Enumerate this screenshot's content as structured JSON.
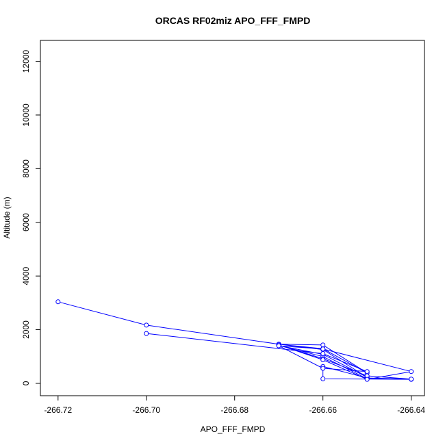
{
  "chart_data": {
    "type": "line",
    "title": "ORCAS RF02miz APO_FFF_FMPD",
    "xlabel": "APO_FFF_FMPD",
    "ylabel": "Altitude (m)",
    "xlim": [
      -266.724,
      -266.637
    ],
    "ylim": [
      -460,
      12780
    ],
    "xticks": [
      -266.72,
      -266.7,
      -266.68,
      -266.66,
      -266.64
    ],
    "xtick_labels": [
      "-266.72",
      "-266.70",
      "-266.68",
      "-266.66",
      "-266.64"
    ],
    "yticks": [
      0,
      2000,
      4000,
      6000,
      8000,
      10000,
      12000
    ],
    "ytick_labels": [
      "0",
      "2000",
      "4000",
      "6000",
      "8000",
      "10000",
      "12000"
    ],
    "grid": false,
    "marker": "open-circle",
    "series": [
      {
        "color": "#0000ff",
        "points": [
          [
            -266.72,
            3040
          ],
          [
            -266.7,
            2170
          ],
          [
            -266.67,
            1460
          ],
          [
            -266.66,
            1290
          ],
          [
            -266.65,
            390
          ],
          [
            -266.66,
            1430
          ],
          [
            -266.67,
            1460
          ],
          [
            -266.66,
            1260
          ],
          [
            -266.65,
            230
          ],
          [
            -266.66,
            1080
          ],
          [
            -266.67,
            1410
          ],
          [
            -266.66,
            1000
          ],
          [
            -266.65,
            170
          ],
          [
            -266.64,
            150
          ],
          [
            -266.66,
            170
          ],
          [
            -266.66,
            630
          ],
          [
            -266.65,
            200
          ],
          [
            -266.64,
            160
          ],
          [
            -266.65,
            280
          ],
          [
            -266.66,
            920
          ],
          [
            -266.67,
            1430
          ],
          [
            -266.66,
            880
          ],
          [
            -266.65,
            150
          ],
          [
            -266.64,
            440
          ],
          [
            -266.66,
            1280
          ],
          [
            -266.67,
            1400
          ],
          [
            -266.66,
            560
          ],
          [
            -266.65,
            440
          ],
          [
            -266.66,
            1110
          ],
          [
            -266.7,
            1860
          ]
        ]
      }
    ]
  }
}
